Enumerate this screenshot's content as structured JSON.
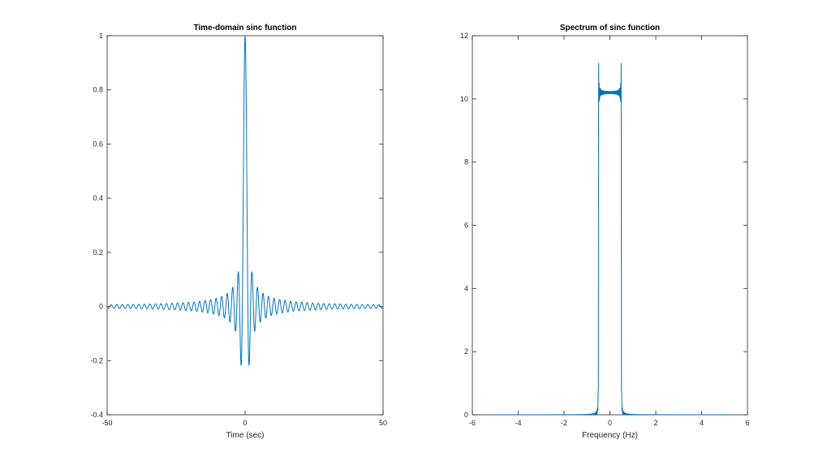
{
  "chart_data": [
    {
      "type": "line",
      "title": "Time-domain sinc function",
      "xlabel": "Time (sec)",
      "ylabel": "",
      "xlim": [
        -50,
        50
      ],
      "ylim": [
        -0.4,
        1
      ],
      "xticks": [
        -50,
        0,
        50
      ],
      "xtick_labels": [
        "-50",
        "0",
        "50"
      ],
      "yticks": [
        -0.4,
        -0.2,
        0,
        0.2,
        0.4,
        0.6,
        0.8,
        1
      ],
      "ytick_labels": [
        "-0.4",
        "-0.2",
        "0",
        "0.2",
        "0.4",
        "0.6",
        "0.8",
        "1"
      ],
      "grid": false,
      "line_color": "#0072BD",
      "series": [
        {
          "function": "sinc(t) = sin(pi t)/(pi t)",
          "x_range": [
            -50,
            50
          ],
          "peak": {
            "x": 0,
            "y": 1
          },
          "min_sidelobe": {
            "x": [
              -1.5,
              1.5
            ],
            "y": -0.217
          }
        }
      ]
    },
    {
      "type": "line",
      "title": "Spectrum of sinc function",
      "xlabel": "Frequency (Hz)",
      "ylabel": "",
      "xlim": [
        -6,
        6
      ],
      "ylim": [
        0,
        12
      ],
      "xticks": [
        -6,
        -4,
        -2,
        0,
        2,
        4,
        6
      ],
      "xtick_labels": [
        "-6",
        "-4",
        "-2",
        "0",
        "2",
        "4",
        "6"
      ],
      "yticks": [
        0,
        2,
        4,
        6,
        8,
        10,
        12
      ],
      "ytick_labels": [
        "0",
        "2",
        "4",
        "6",
        "8",
        "10",
        "12"
      ],
      "grid": false,
      "line_color": "#0072BD",
      "series": [
        {
          "shape": "rectangular passband with Gibbs ripple",
          "x_range": [
            -5.12,
            5.12
          ],
          "passband": [
            -0.5,
            0.5
          ],
          "passband_level": 10.2,
          "edge_peak": 11.2,
          "stopband_level": 0
        }
      ]
    }
  ]
}
